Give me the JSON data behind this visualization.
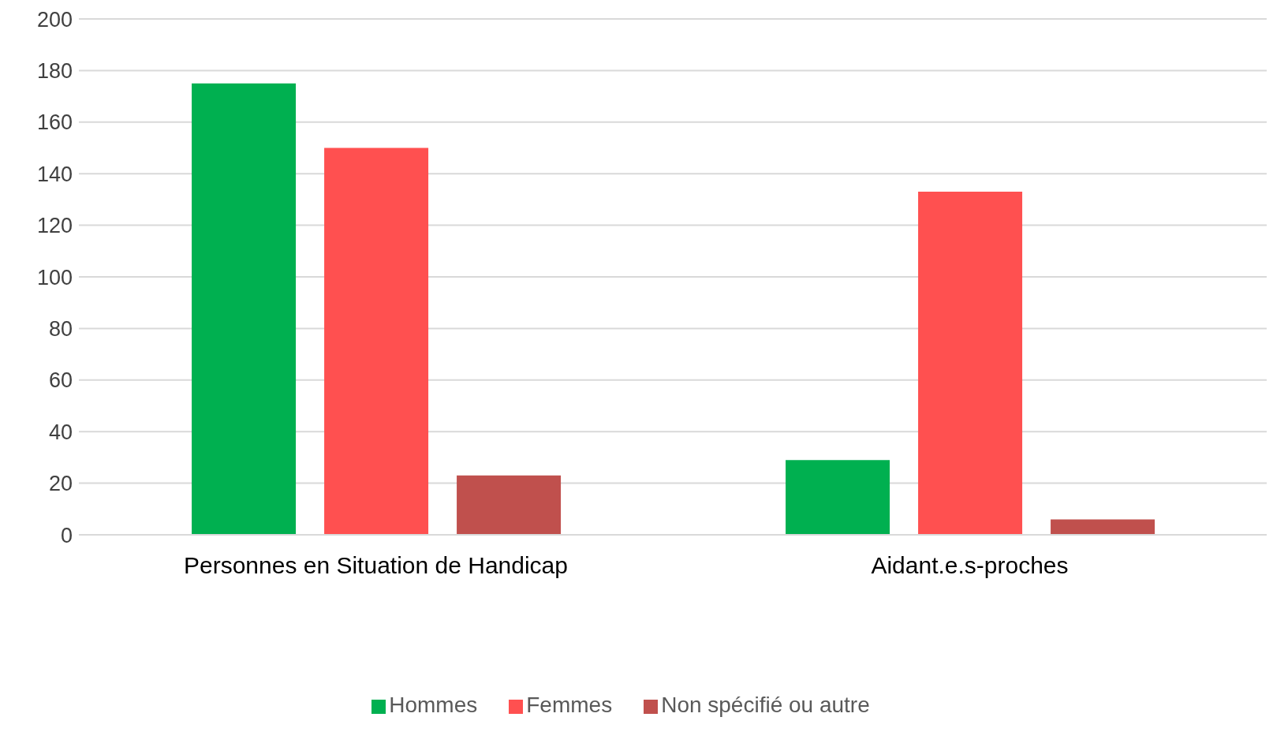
{
  "chart_data": {
    "type": "bar",
    "categories": [
      "Personnes en Situation de Handicap",
      "Aidant.e.s-proches"
    ],
    "series": [
      {
        "name": "Hommes",
        "color": "#00b050",
        "values": [
          175,
          29
        ]
      },
      {
        "name": "Femmes",
        "color": "#ff5050",
        "values": [
          150,
          133
        ]
      },
      {
        "name": "Non spécifié ou autre",
        "color": "#c0504d",
        "values": [
          23,
          6
        ]
      }
    ],
    "ylim": [
      0,
      200
    ],
    "yticks": [
      0,
      20,
      40,
      60,
      80,
      100,
      120,
      140,
      160,
      180,
      200
    ],
    "grid": "y",
    "legend": "bottom"
  }
}
